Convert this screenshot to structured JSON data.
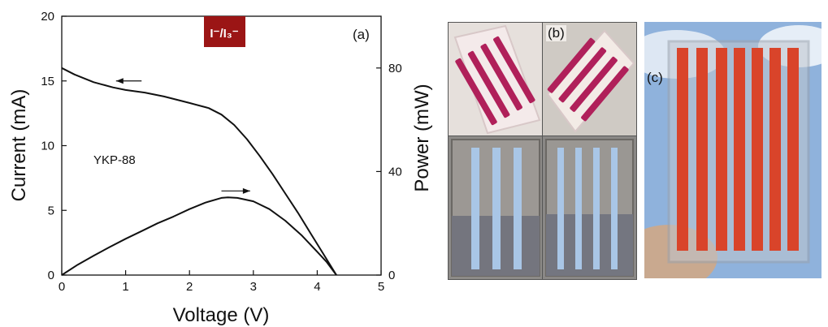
{
  "chart_data": {
    "type": "line",
    "xlabel": "Voltage (V)",
    "ylabel": "Current (mA)",
    "y2label": "Power (mW)",
    "xlim": [
      0,
      5
    ],
    "ylim": [
      0,
      20
    ],
    "y2lim": [
      0,
      100
    ],
    "xticks": [
      "0",
      "1",
      "2",
      "3",
      "4",
      "5"
    ],
    "yticks": [
      "0",
      "5",
      "10",
      "15",
      "20"
    ],
    "y2ticks": [
      "0",
      "40",
      "80"
    ],
    "y2tick_values": [
      0,
      40,
      80
    ],
    "grid": false,
    "panel_label": "(a)",
    "annotation": "YKP-88",
    "badge": {
      "text": "I⁻/I₃⁻",
      "color": "#9b1515"
    },
    "series": [
      {
        "axis": "left",
        "x": [
          0,
          0.2,
          0.5,
          0.8,
          1.0,
          1.3,
          1.6,
          2.0,
          2.3,
          2.5,
          2.7,
          2.9,
          3.1,
          3.3,
          3.5,
          3.7,
          3.9,
          4.1,
          4.3
        ],
        "y": [
          16.0,
          15.5,
          14.9,
          14.5,
          14.3,
          14.1,
          13.8,
          13.3,
          12.9,
          12.4,
          11.6,
          10.5,
          9.2,
          7.8,
          6.3,
          4.8,
          3.2,
          1.6,
          0.0
        ]
      },
      {
        "axis": "right",
        "x": [
          0,
          0.25,
          0.5,
          0.75,
          1.0,
          1.25,
          1.5,
          1.75,
          2.0,
          2.25,
          2.5,
          2.6,
          2.75,
          3.0,
          3.25,
          3.5,
          3.75,
          4.0,
          4.15,
          4.3
        ],
        "y": [
          0,
          4,
          7.5,
          10.8,
          14,
          17,
          20,
          22.6,
          25.5,
          28,
          29.8,
          30,
          29.8,
          28.5,
          25.5,
          21,
          15.5,
          9,
          5,
          0
        ]
      }
    ],
    "arrows": [
      {
        "direction": "left",
        "x_start": 1.25,
        "x_end": 0.85,
        "y": 15.0,
        "axis": "left"
      },
      {
        "direction": "right",
        "x_start": 2.5,
        "x_end": 2.95,
        "y": 6.5,
        "axis": "left"
      }
    ]
  },
  "photos": {
    "panel_b_label": "(b)",
    "panel_c_label": "(c)",
    "stripe_color": "#b0205a",
    "stripe_color_c": "#d9442a",
    "clear_stripe_color": "#a9c6e6",
    "sky_color": "#8fb2dc"
  }
}
